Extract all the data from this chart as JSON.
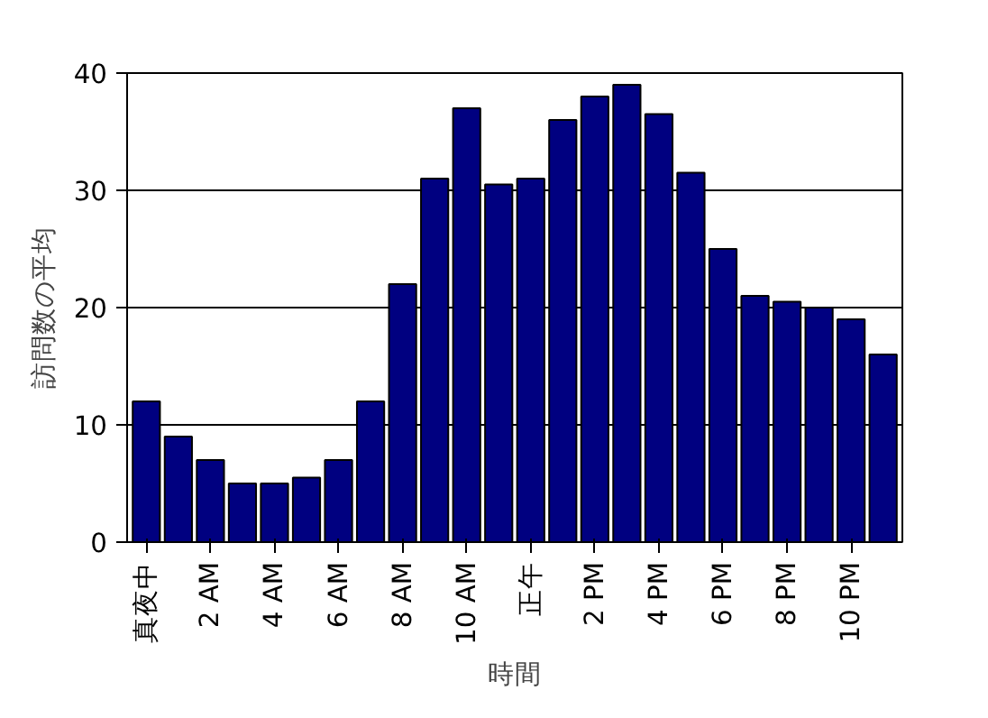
{
  "chart_data": {
    "type": "bar",
    "xlabel": "時間",
    "ylabel": "訪問数の平均",
    "categories": [
      "真夜中",
      null,
      "2 AM",
      null,
      "4 AM",
      null,
      "6 AM",
      null,
      "8 AM",
      null,
      "10 AM",
      null,
      "正午",
      null,
      "2 PM",
      null,
      "4 PM",
      null,
      "6 PM",
      null,
      "8 PM",
      null,
      "10 PM",
      null
    ],
    "values": [
      12,
      9,
      7,
      5,
      5,
      5.5,
      7,
      12,
      22,
      31,
      37,
      30.5,
      31,
      36,
      38,
      39,
      36.5,
      31.5,
      25,
      21,
      20.5,
      20,
      19,
      16
    ],
    "color": "#000080",
    "ylim": [
      0,
      40
    ],
    "yticks": [
      0,
      10,
      20,
      30,
      40
    ],
    "grid": "y"
  }
}
